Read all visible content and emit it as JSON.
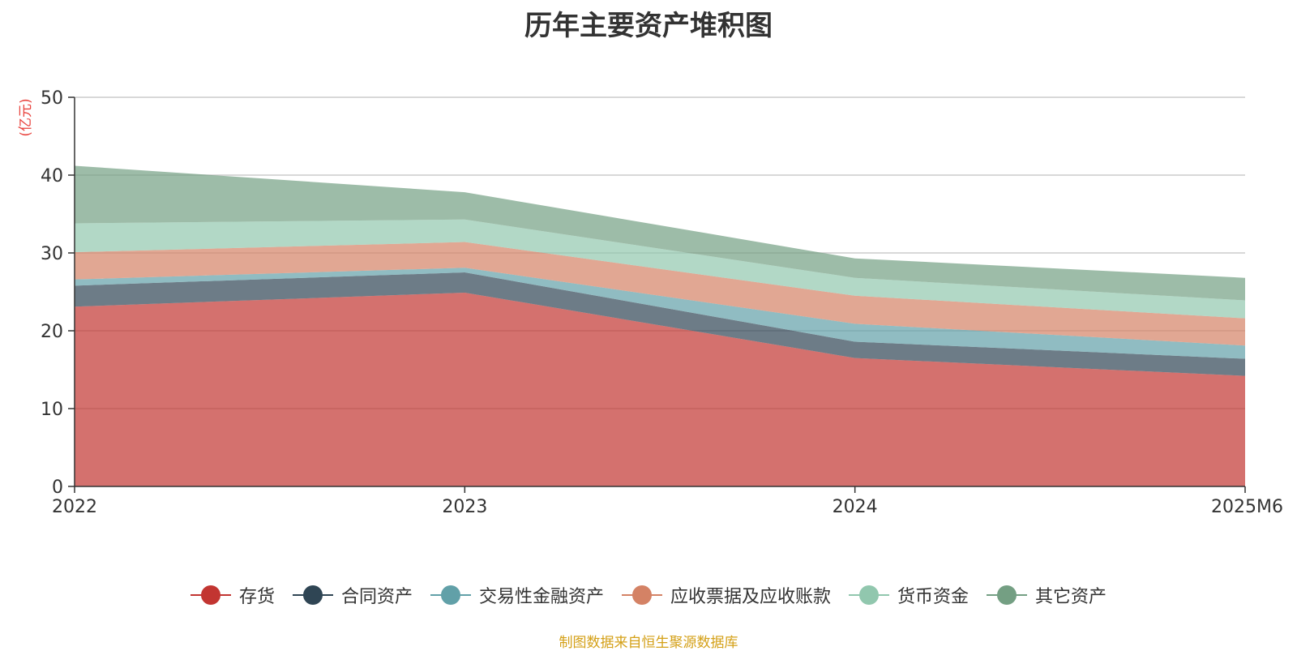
{
  "chart_data": {
    "type": "area",
    "stacked": true,
    "title": "历年主要资产堆积图",
    "ylabel": "(亿元)",
    "xlabel": "",
    "ylim": [
      0,
      50
    ],
    "yticks": [
      0,
      10,
      20,
      30,
      40,
      50
    ],
    "categories": [
      "2022",
      "2023",
      "2024",
      "2025M6"
    ],
    "grid": true,
    "legend_position": "bottom",
    "series": [
      {
        "name": "存货",
        "color": "#c23531",
        "values": [
          23.1,
          24.9,
          16.5,
          14.2
        ]
      },
      {
        "name": "合同资产",
        "color": "#2f4554",
        "values": [
          2.7,
          2.6,
          2.1,
          2.2
        ]
      },
      {
        "name": "交易性金融资产",
        "color": "#61a0a8",
        "values": [
          0.8,
          0.6,
          2.3,
          1.7
        ]
      },
      {
        "name": "应收票据及应收账款",
        "color": "#d48265",
        "values": [
          3.5,
          3.3,
          3.6,
          3.5
        ]
      },
      {
        "name": "货币资金",
        "color": "#91c7ae",
        "values": [
          3.7,
          2.9,
          2.3,
          2.3
        ]
      },
      {
        "name": "其它资产",
        "color": "#749f83",
        "values": [
          7.4,
          3.5,
          2.5,
          2.9
        ]
      }
    ],
    "source": "制图数据来自恒生聚源数据库"
  }
}
